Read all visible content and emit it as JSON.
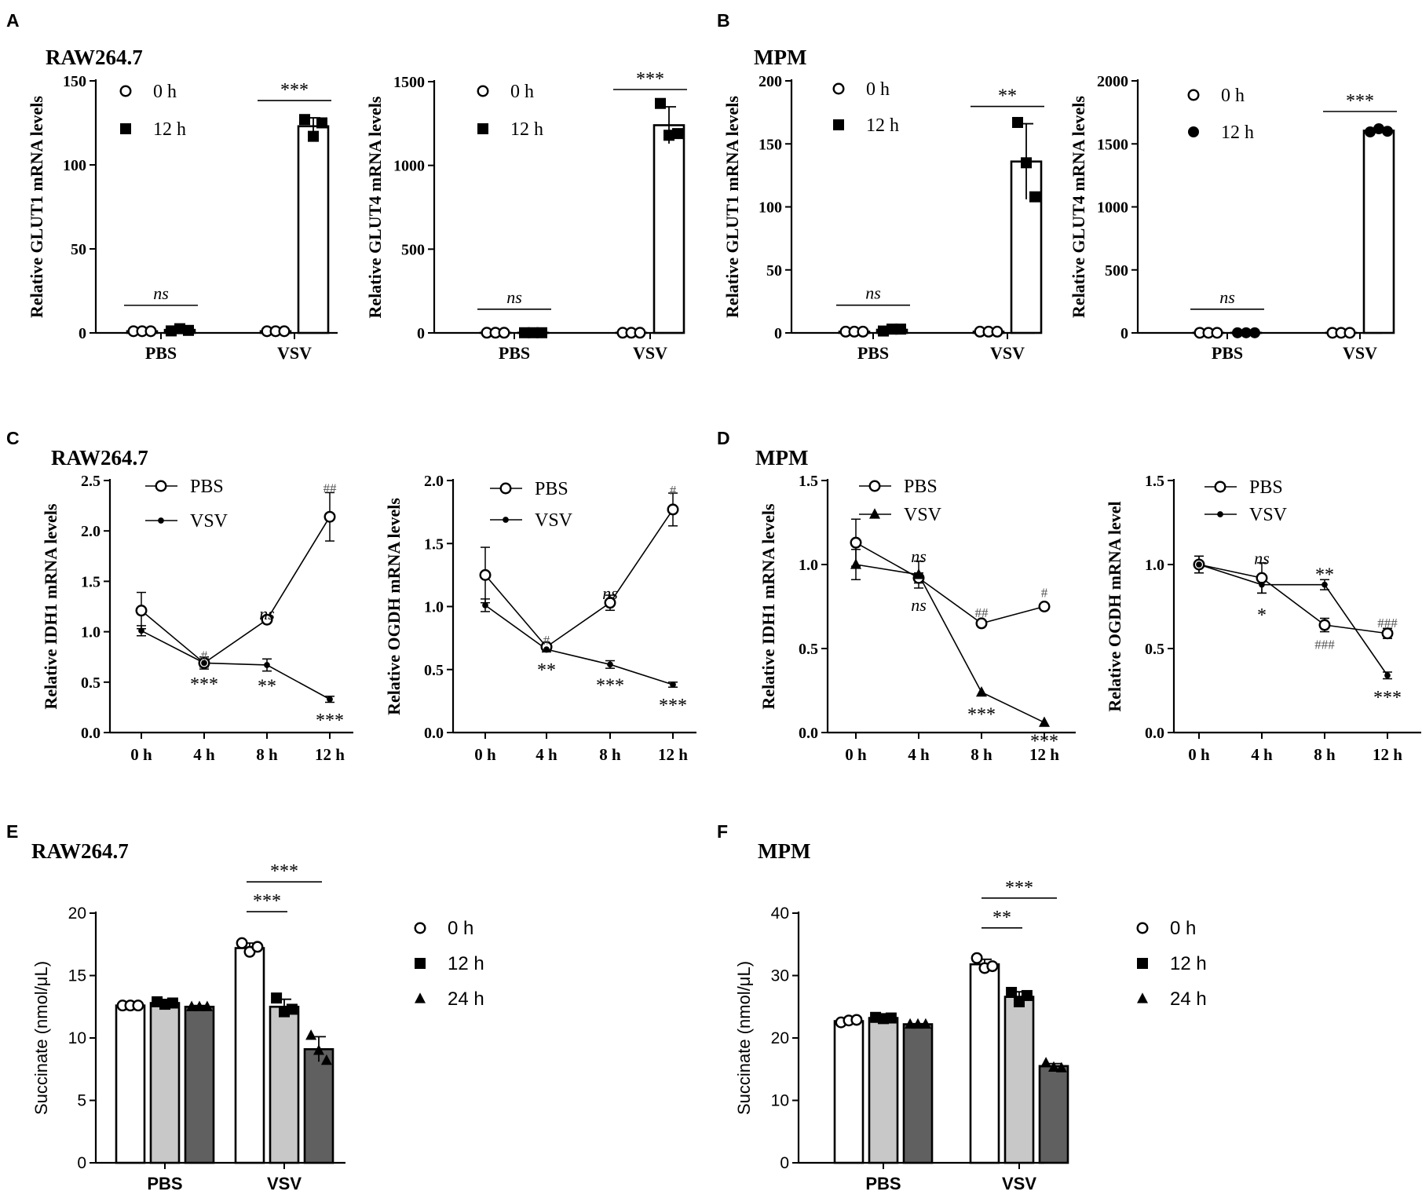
{
  "panel_letters": [
    "A",
    "B",
    "C",
    "D",
    "E",
    "F"
  ],
  "chart_data": [
    {
      "id": "A1",
      "panel": "A",
      "type": "bar",
      "title": "RAW264.7",
      "font": "serif",
      "ylabel": "Relative GLUT1 mRNA levels",
      "ylim": [
        0,
        150
      ],
      "yticks": [
        0,
        50,
        100,
        150
      ],
      "categories": [
        "PBS",
        "VSV"
      ],
      "series": [
        {
          "name": "0 h",
          "marker": "circle-open",
          "fill": "#ffffff",
          "values": [
            1,
            1
          ],
          "points": [
            [
              1,
              1,
              1
            ],
            [
              1,
              1,
              1
            ]
          ]
        },
        {
          "name": "12 h",
          "marker": "square-filled",
          "fill": "#ffffff",
          "values": [
            1.8,
            123
          ],
          "points": [
            [
              1.2,
              2.5,
              1.5
            ],
            [
              127,
              117,
              125
            ]
          ],
          "err": [
            0.6,
            5
          ]
        }
      ],
      "legend": {
        "entries": [
          {
            "label": "0 h",
            "marker": "circle-open"
          },
          {
            "label": "12 h",
            "marker": "square-filled"
          }
        ]
      },
      "annotations": [
        {
          "text": "ns",
          "italic": true,
          "group": 0
        },
        {
          "text": "***",
          "group": 1
        }
      ]
    },
    {
      "id": "A2",
      "panel": "A",
      "type": "bar",
      "font": "serif",
      "ylabel": "Relative GLUT4 mRNA levels",
      "ylim": [
        0,
        1500
      ],
      "yticks": [
        0,
        500,
        1000,
        1500
      ],
      "categories": [
        "PBS",
        "VSV"
      ],
      "series": [
        {
          "name": "0 h",
          "marker": "circle-open",
          "fill": "#ffffff",
          "values": [
            1,
            1
          ],
          "points": [
            [
              1,
              1,
              1
            ],
            [
              1,
              1,
              1
            ]
          ]
        },
        {
          "name": "12 h",
          "marker": "square-filled",
          "fill": "#ffffff",
          "values": [
            1,
            1240
          ],
          "points": [
            [
              1,
              1,
              1
            ],
            [
              1370,
              1180,
              1190
            ]
          ],
          "err": [
            0,
            110
          ]
        }
      ],
      "legend": {
        "entries": [
          {
            "label": "0 h",
            "marker": "circle-open"
          },
          {
            "label": "12 h",
            "marker": "square-filled"
          }
        ]
      },
      "annotations": [
        {
          "text": "ns",
          "italic": true,
          "group": 0
        },
        {
          "text": "***",
          "group": 1
        }
      ]
    },
    {
      "id": "B1",
      "panel": "B",
      "type": "bar",
      "title": "MPM",
      "font": "serif",
      "ylabel": "Relative GLUT1 mRNA levels",
      "ylim": [
        0,
        200
      ],
      "yticks": [
        0,
        50,
        100,
        150,
        200
      ],
      "categories": [
        "PBS",
        "VSV"
      ],
      "series": [
        {
          "name": "0 h",
          "marker": "circle-open",
          "fill": "#ffffff",
          "values": [
            1,
            1
          ],
          "points": [
            [
              1,
              1,
              1
            ],
            [
              1,
              1,
              1
            ]
          ]
        },
        {
          "name": "12 h",
          "marker": "square-filled",
          "fill": "#ffffff",
          "values": [
            2.5,
            136
          ],
          "points": [
            [
              1.5,
              3,
              3
            ],
            [
              167,
              135,
              108
            ]
          ],
          "err": [
            0.8,
            30
          ]
        }
      ],
      "legend": {
        "entries": [
          {
            "label": "0 h",
            "marker": "circle-open"
          },
          {
            "label": "12 h",
            "marker": "square-filled"
          }
        ]
      },
      "annotations": [
        {
          "text": "ns",
          "italic": true,
          "group": 0
        },
        {
          "text": "**",
          "group": 1
        }
      ]
    },
    {
      "id": "B2",
      "panel": "B",
      "type": "bar",
      "font": "serif",
      "ylabel": "Relative GLUT4 mRNA levels",
      "ylim": [
        0,
        2000
      ],
      "yticks": [
        0,
        500,
        1000,
        1500,
        2000
      ],
      "categories": [
        "PBS",
        "VSV"
      ],
      "series": [
        {
          "name": "0 h",
          "marker": "circle-open",
          "fill": "#ffffff",
          "values": [
            1,
            1
          ],
          "points": [
            [
              1,
              1,
              1
            ],
            [
              1,
              1,
              1
            ]
          ]
        },
        {
          "name": "12 h",
          "marker": "circle-filled",
          "fill": "#ffffff",
          "values": [
            1,
            1605
          ],
          "points": [
            [
              1,
              1,
              1
            ],
            [
              1595,
              1620,
              1600
            ]
          ],
          "err": [
            0,
            15
          ]
        }
      ],
      "legend": {
        "entries": [
          {
            "label": "0 h",
            "marker": "circle-open"
          },
          {
            "label": "12 h",
            "marker": "circle-filled"
          }
        ]
      },
      "annotations": [
        {
          "text": "ns",
          "italic": true,
          "group": 0
        },
        {
          "text": "***",
          "group": 1
        }
      ]
    },
    {
      "id": "C1",
      "panel": "C",
      "type": "line",
      "title": "RAW264.7",
      "font": "serif",
      "ylabel": "Relative IDH1 mRNA levels",
      "ylim": [
        0,
        2.5
      ],
      "yticks": [
        0,
        0.5,
        1.0,
        1.5,
        2.0,
        2.5
      ],
      "categories": [
        "0 h",
        "4 h",
        "8 h",
        "12 h"
      ],
      "series": [
        {
          "name": "PBS",
          "marker": "circle-open",
          "values": [
            1.21,
            0.69,
            1.12,
            2.14
          ],
          "err": [
            0.18,
            0.04,
            0.02,
            0.24
          ]
        },
        {
          "name": "VSV",
          "marker": "dot-filled",
          "values": [
            1.01,
            0.69,
            0.67,
            0.33
          ],
          "err": [
            0.05,
            0.06,
            0.06,
            0.03
          ]
        }
      ],
      "legend": {
        "entries": [
          {
            "label": "PBS",
            "marker": "circle-open"
          },
          {
            "label": "VSV",
            "marker": "dot-filled"
          }
        ]
      },
      "annotations": [
        {
          "text": "#",
          "hash": true,
          "x": 1,
          "y": 0.76
        },
        {
          "text": "***",
          "x": 1,
          "y": 0.5
        },
        {
          "text": "ns",
          "italic": true,
          "x": 2,
          "y": 1.2
        },
        {
          "text": "**",
          "x": 2,
          "y": 0.48
        },
        {
          "text": "##",
          "hash": true,
          "x": 3,
          "y": 2.42
        },
        {
          "text": "***",
          "x": 3,
          "y": 0.14
        }
      ]
    },
    {
      "id": "C2",
      "panel": "C",
      "type": "line",
      "font": "serif",
      "ylabel": "Relative OGDH mRNA levels",
      "ylim": [
        0,
        2.0
      ],
      "yticks": [
        0,
        0.5,
        1.0,
        1.5,
        2.0
      ],
      "categories": [
        "0 h",
        "4 h",
        "8 h",
        "12 h"
      ],
      "series": [
        {
          "name": "PBS",
          "marker": "circle-open",
          "values": [
            1.25,
            0.68,
            1.03,
            1.77
          ],
          "err": [
            0.22,
            0.02,
            0.06,
            0.13
          ]
        },
        {
          "name": "VSV",
          "marker": "dot-filled",
          "values": [
            1.01,
            0.66,
            0.54,
            0.38
          ],
          "err": [
            0.05,
            0.02,
            0.03,
            0.02
          ]
        }
      ],
      "legend": {
        "entries": [
          {
            "label": "PBS",
            "marker": "circle-open"
          },
          {
            "label": "VSV",
            "marker": "dot-filled"
          }
        ]
      },
      "annotations": [
        {
          "text": "#",
          "hash": true,
          "x": 1,
          "y": 0.73
        },
        {
          "text": "**",
          "x": 1,
          "y": 0.51
        },
        {
          "text": "ns",
          "italic": true,
          "x": 2,
          "y": 1.12
        },
        {
          "text": "***",
          "x": 2,
          "y": 0.39
        },
        {
          "text": "#",
          "hash": true,
          "x": 3,
          "y": 1.92
        },
        {
          "text": "***",
          "x": 3,
          "y": 0.23
        }
      ]
    },
    {
      "id": "D1",
      "panel": "D",
      "type": "line",
      "title": "MPM",
      "font": "serif",
      "ylabel": "Relative IDH1 mRNA levels",
      "ylim": [
        0,
        1.5
      ],
      "yticks": [
        0,
        0.5,
        1.0,
        1.5
      ],
      "categories": [
        "0 h",
        "4 h",
        "8 h",
        "12 h"
      ],
      "series": [
        {
          "name": "PBS",
          "marker": "circle-open",
          "values": [
            1.13,
            0.92,
            0.65,
            0.75
          ],
          "err": [
            0.14,
            0.03,
            0.01,
            0.01
          ]
        },
        {
          "name": "VSV",
          "marker": "triangle-filled",
          "values": [
            1.0,
            0.94,
            0.24,
            0.06
          ],
          "err": [
            0.09,
            0.08,
            0.0,
            0.0
          ]
        }
      ],
      "legend": {
        "entries": [
          {
            "label": "PBS",
            "marker": "circle-open"
          },
          {
            "label": "VSV",
            "marker": "triangle-filled"
          }
        ]
      },
      "annotations": [
        {
          "text": "ns",
          "italic": true,
          "x": 1,
          "y": 1.06
        },
        {
          "text": "ns",
          "italic": true,
          "x": 1,
          "y": 0.77
        },
        {
          "text": "##",
          "hash": true,
          "x": 2,
          "y": 0.71
        },
        {
          "text": "***",
          "x": 2,
          "y": 0.12
        },
        {
          "text": "#",
          "hash": true,
          "x": 3,
          "y": 0.83
        },
        {
          "text": "***",
          "x": 3,
          "y": -0.04
        }
      ]
    },
    {
      "id": "D2",
      "panel": "D",
      "type": "line",
      "font": "serif",
      "ylabel": "Relative OGDH mRNA level",
      "ylim": [
        0,
        1.5
      ],
      "yticks": [
        0,
        0.5,
        1.0,
        1.5
      ],
      "categories": [
        "0 h",
        "4 h",
        "8 h",
        "12 h"
      ],
      "series": [
        {
          "name": "PBS",
          "marker": "circle-open",
          "values": [
            1.0,
            0.92,
            0.64,
            0.59
          ],
          "err": [
            0.05,
            0.09,
            0.04,
            0.03
          ]
        },
        {
          "name": "VSV",
          "marker": "dot-filled",
          "values": [
            1.0,
            0.88,
            0.88,
            0.34
          ],
          "err": [
            0.05,
            0.05,
            0.03,
            0.02
          ]
        }
      ],
      "legend": {
        "entries": [
          {
            "label": "PBS",
            "marker": "circle-open"
          },
          {
            "label": "VSV",
            "marker": "dot-filled"
          }
        ]
      },
      "annotations": [
        {
          "text": "ns",
          "italic": true,
          "x": 1,
          "y": 1.05
        },
        {
          "text": "*",
          "x": 1,
          "y": 0.71
        },
        {
          "text": "**",
          "x": 2,
          "y": 0.95
        },
        {
          "text": "###",
          "hash": true,
          "x": 2,
          "y": 0.52
        },
        {
          "text": "###",
          "hash": true,
          "x": 3,
          "y": 0.65
        },
        {
          "text": "***",
          "x": 3,
          "y": 0.22
        }
      ]
    },
    {
      "id": "E",
      "panel": "E",
      "type": "bar",
      "title": "RAW264.7",
      "font": "sans",
      "ylabel": "Succinate (nmol/μL)",
      "ylim": [
        0,
        20
      ],
      "yticks": [
        0,
        5,
        10,
        15,
        20
      ],
      "categories": [
        "PBS",
        "VSV"
      ],
      "series": [
        {
          "name": "0 h",
          "marker": "circle-open",
          "fill": "#ffffff",
          "values": [
            12.6,
            17.2
          ],
          "err": [
            0.1,
            0.4
          ],
          "points": [
            [
              12.6,
              12.6,
              12.6
            ],
            [
              17.6,
              16.9,
              17.3
            ]
          ]
        },
        {
          "name": "12 h",
          "marker": "square-filled",
          "fill": "#c8c8c8",
          "values": [
            12.8,
            12.5
          ],
          "err": [
            0.1,
            0.6
          ],
          "points": [
            [
              12.9,
              12.7,
              12.8
            ],
            [
              13.2,
              12.1,
              12.3
            ]
          ]
        },
        {
          "name": "24 h",
          "marker": "triangle-filled",
          "fill": "#606060",
          "values": [
            12.5,
            9.1
          ],
          "err": [
            0.1,
            1.0
          ],
          "points": [
            [
              12.5,
              12.5,
              12.5
            ],
            [
              10.2,
              9.0,
              8.2
            ]
          ]
        }
      ],
      "legend": {
        "entries": [
          {
            "label": "0 h",
            "marker": "circle-open"
          },
          {
            "label": "12 h",
            "marker": "square-filled"
          },
          {
            "label": "24 h",
            "marker": "triangle-filled"
          }
        ]
      },
      "annotations": [
        {
          "text": "***",
          "group": 1,
          "from": 0,
          "to": 1,
          "level": 0
        },
        {
          "text": "***",
          "group": 1,
          "from": 0,
          "to": 2,
          "level": 1
        }
      ]
    },
    {
      "id": "F",
      "panel": "F",
      "type": "bar",
      "title": "MPM",
      "font": "sans",
      "ylabel": "Succinate (nmol/μL)",
      "ylim": [
        0,
        40
      ],
      "yticks": [
        0,
        10,
        20,
        30,
        40
      ],
      "categories": [
        "PBS",
        "VSV"
      ],
      "series": [
        {
          "name": "0 h",
          "marker": "circle-open",
          "fill": "#ffffff",
          "values": [
            22.7,
            31.8
          ],
          "err": [
            0.2,
            0.8
          ],
          "points": [
            [
              22.5,
              22.8,
              22.9
            ],
            [
              32.8,
              31.2,
              31.5
            ]
          ]
        },
        {
          "name": "12 h",
          "marker": "square-filled",
          "fill": "#c8c8c8",
          "values": [
            23.2,
            26.6
          ],
          "err": [
            0.2,
            0.8
          ],
          "points": [
            [
              23.3,
              23.1,
              23.2
            ],
            [
              27.3,
              25.8,
              26.8
            ]
          ]
        },
        {
          "name": "24 h",
          "marker": "triangle-filled",
          "fill": "#606060",
          "values": [
            22.2,
            15.5
          ],
          "err": [
            0.1,
            0.4
          ],
          "points": [
            [
              22.2,
              22.2,
              22.2
            ],
            [
              16.0,
              15.3,
              15.2
            ]
          ]
        }
      ],
      "legend": {
        "entries": [
          {
            "label": "0 h",
            "marker": "circle-open"
          },
          {
            "label": "12 h",
            "marker": "square-filled"
          },
          {
            "label": "24 h",
            "marker": "triangle-filled"
          }
        ]
      },
      "annotations": [
        {
          "text": "**",
          "group": 1,
          "from": 0,
          "to": 1,
          "level": 0
        },
        {
          "text": "***",
          "group": 1,
          "from": 0,
          "to": 2,
          "level": 1
        }
      ]
    }
  ]
}
